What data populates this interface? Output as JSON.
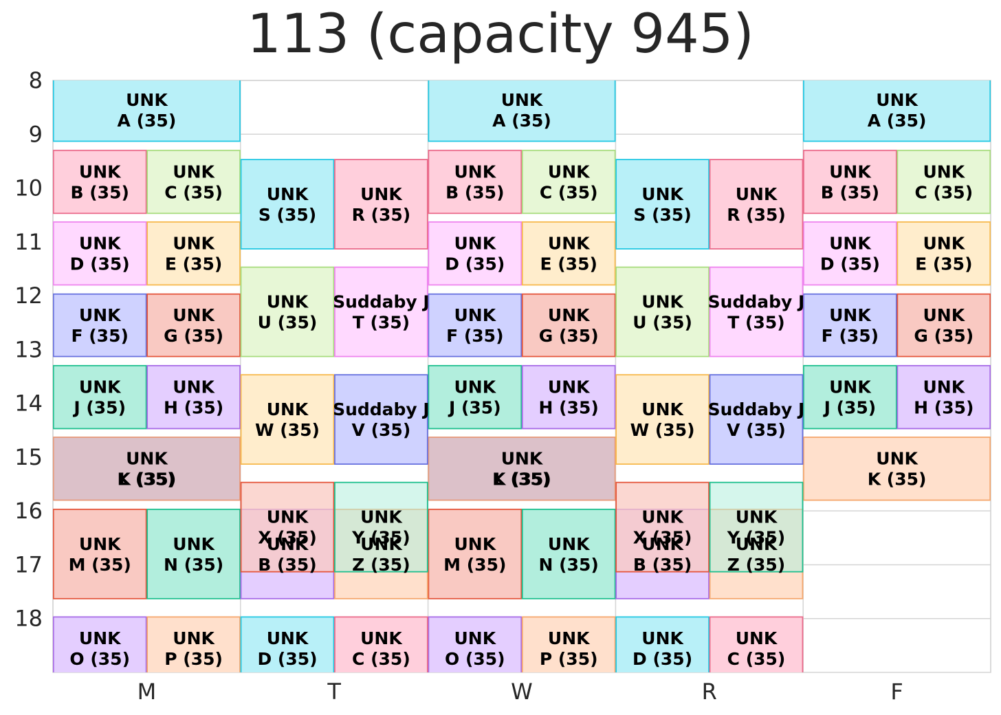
{
  "chart_data": {
    "type": "timeline",
    "title": "113 (capacity 945)",
    "x_categories": [
      "M",
      "T",
      "W",
      "R",
      "F"
    ],
    "y_ticks": [
      8,
      9,
      10,
      11,
      12,
      13,
      14,
      15,
      16,
      17,
      18
    ],
    "ylim": [
      8,
      19
    ],
    "grid": true,
    "colors": {
      "cyan": "#b8f0f8",
      "cyan_edge": "#23c8e3",
      "pink": "#ffcfdc",
      "pink_edge": "#ea6a8a",
      "lime": "#e7f7d6",
      "lime_edge": "#a8dc7e",
      "magenta": "#ffd9ff",
      "magenta_edge": "#ee84ee",
      "orange": "#ffedcc",
      "orange_edge": "#f7b94c",
      "blue": "#cfd2ff",
      "blue_edge": "#6770de",
      "red": "#f9c9c2",
      "red_edge": "#e4553b",
      "teal": "#b2eedd",
      "teal_edge": "#1dbf8e",
      "purple": "#e4ceff",
      "purple_edge": "#a66ae6",
      "peach": "#ffe0cc",
      "peach_edge": "#f5a66c",
      "mauve": "#dcc1c9",
      "mauve_edge": "#e79a7a"
    },
    "events": [
      {
        "day": "M",
        "slot": "full",
        "start": 7.97,
        "end": 9.13,
        "color": "cyan",
        "line1": "UNK",
        "line2": "A (35)"
      },
      {
        "day": "W",
        "slot": "full",
        "start": 7.97,
        "end": 9.13,
        "color": "cyan",
        "line1": "UNK",
        "line2": "A (35)"
      },
      {
        "day": "F",
        "slot": "full",
        "start": 7.97,
        "end": 9.13,
        "color": "cyan",
        "line1": "UNK",
        "line2": "A (35)"
      },
      {
        "day": "M",
        "slot": "left",
        "start": 9.3,
        "end": 10.47,
        "color": "pink",
        "line1": "UNK",
        "line2": "B (35)"
      },
      {
        "day": "M",
        "slot": "right",
        "start": 9.3,
        "end": 10.47,
        "color": "lime",
        "line1": "UNK",
        "line2": "C (35)"
      },
      {
        "day": "W",
        "slot": "left",
        "start": 9.3,
        "end": 10.47,
        "color": "pink",
        "line1": "UNK",
        "line2": "B (35)"
      },
      {
        "day": "W",
        "slot": "right",
        "start": 9.3,
        "end": 10.47,
        "color": "lime",
        "line1": "UNK",
        "line2": "C (35)"
      },
      {
        "day": "F",
        "slot": "left",
        "start": 9.3,
        "end": 10.47,
        "color": "pink",
        "line1": "UNK",
        "line2": "B (35)"
      },
      {
        "day": "F",
        "slot": "right",
        "start": 9.3,
        "end": 10.47,
        "color": "lime",
        "line1": "UNK",
        "line2": "C (35)"
      },
      {
        "day": "M",
        "slot": "left",
        "start": 10.63,
        "end": 11.8,
        "color": "magenta",
        "line1": "UNK",
        "line2": "D (35)"
      },
      {
        "day": "M",
        "slot": "right",
        "start": 10.63,
        "end": 11.8,
        "color": "orange",
        "line1": "UNK",
        "line2": "E (35)"
      },
      {
        "day": "W",
        "slot": "left",
        "start": 10.63,
        "end": 11.8,
        "color": "magenta",
        "line1": "UNK",
        "line2": "D (35)"
      },
      {
        "day": "W",
        "slot": "right",
        "start": 10.63,
        "end": 11.8,
        "color": "orange",
        "line1": "UNK",
        "line2": "E (35)"
      },
      {
        "day": "F",
        "slot": "left",
        "start": 10.63,
        "end": 11.8,
        "color": "magenta",
        "line1": "UNK",
        "line2": "D (35)"
      },
      {
        "day": "F",
        "slot": "right",
        "start": 10.63,
        "end": 11.8,
        "color": "orange",
        "line1": "UNK",
        "line2": "E (35)"
      },
      {
        "day": "M",
        "slot": "left",
        "start": 11.97,
        "end": 13.13,
        "color": "blue",
        "line1": "UNK",
        "line2": "F (35)"
      },
      {
        "day": "M",
        "slot": "right",
        "start": 11.97,
        "end": 13.13,
        "color": "red",
        "line1": "UNK",
        "line2": "G (35)"
      },
      {
        "day": "W",
        "slot": "left",
        "start": 11.97,
        "end": 13.13,
        "color": "blue",
        "line1": "UNK",
        "line2": "F (35)"
      },
      {
        "day": "W",
        "slot": "right",
        "start": 11.97,
        "end": 13.13,
        "color": "red",
        "line1": "UNK",
        "line2": "G (35)"
      },
      {
        "day": "F",
        "slot": "left",
        "start": 11.97,
        "end": 13.13,
        "color": "blue",
        "line1": "UNK",
        "line2": "F (35)"
      },
      {
        "day": "F",
        "slot": "right",
        "start": 11.97,
        "end": 13.13,
        "color": "red",
        "line1": "UNK",
        "line2": "G (35)"
      },
      {
        "day": "M",
        "slot": "left",
        "start": 13.3,
        "end": 14.47,
        "color": "teal",
        "line1": "UNK",
        "line2": "J (35)"
      },
      {
        "day": "M",
        "slot": "right",
        "start": 13.3,
        "end": 14.47,
        "color": "purple",
        "line1": "UNK",
        "line2": "H (35)"
      },
      {
        "day": "W",
        "slot": "left",
        "start": 13.3,
        "end": 14.47,
        "color": "teal",
        "line1": "UNK",
        "line2": "J (35)"
      },
      {
        "day": "W",
        "slot": "right",
        "start": 13.3,
        "end": 14.47,
        "color": "purple",
        "line1": "UNK",
        "line2": "H (35)"
      },
      {
        "day": "F",
        "slot": "left",
        "start": 13.3,
        "end": 14.47,
        "color": "teal",
        "line1": "UNK",
        "line2": "J (35)"
      },
      {
        "day": "F",
        "slot": "right",
        "start": 13.3,
        "end": 14.47,
        "color": "purple",
        "line1": "UNK",
        "line2": "H (35)"
      },
      {
        "day": "M",
        "slot": "full",
        "start": 14.63,
        "end": 15.8,
        "color": "mauve",
        "line1": "UNK",
        "line2": "L (35)"
      },
      {
        "day": "M",
        "slot": "full",
        "start": 14.63,
        "end": 15.8,
        "color": "none",
        "line1": "",
        "line2": "K (35)"
      },
      {
        "day": "W",
        "slot": "full",
        "start": 14.63,
        "end": 15.8,
        "color": "mauve",
        "line1": "UNK",
        "line2": "L (35)"
      },
      {
        "day": "W",
        "slot": "full",
        "start": 14.63,
        "end": 15.8,
        "color": "none",
        "line1": "",
        "line2": "K (35)"
      },
      {
        "day": "F",
        "slot": "full",
        "start": 14.63,
        "end": 15.8,
        "color": "peach",
        "line1": "UNK",
        "line2": "K (35)"
      },
      {
        "day": "M",
        "slot": "left",
        "start": 15.97,
        "end": 17.63,
        "color": "red",
        "line1": "UNK",
        "line2": "M (35)"
      },
      {
        "day": "M",
        "slot": "right",
        "start": 15.97,
        "end": 17.63,
        "color": "teal",
        "line1": "UNK",
        "line2": "N (35)"
      },
      {
        "day": "W",
        "slot": "left",
        "start": 15.97,
        "end": 17.63,
        "color": "red",
        "line1": "UNK",
        "line2": "M (35)"
      },
      {
        "day": "W",
        "slot": "right",
        "start": 15.97,
        "end": 17.63,
        "color": "teal",
        "line1": "UNK",
        "line2": "N (35)"
      },
      {
        "day": "M",
        "slot": "left",
        "start": 17.97,
        "end": 19.13,
        "color": "purple",
        "line1": "UNK",
        "line2": "O (35)"
      },
      {
        "day": "M",
        "slot": "right",
        "start": 17.97,
        "end": 19.13,
        "color": "peach",
        "line1": "UNK",
        "line2": "P (35)"
      },
      {
        "day": "W",
        "slot": "left",
        "start": 17.97,
        "end": 19.13,
        "color": "purple",
        "line1": "UNK",
        "line2": "O (35)"
      },
      {
        "day": "W",
        "slot": "right",
        "start": 17.97,
        "end": 19.13,
        "color": "peach",
        "line1": "UNK",
        "line2": "P (35)"
      },
      {
        "day": "T",
        "slot": "left",
        "start": 9.47,
        "end": 11.13,
        "color": "cyan",
        "line1": "UNK",
        "line2": "S (35)"
      },
      {
        "day": "T",
        "slot": "right",
        "start": 9.47,
        "end": 11.13,
        "color": "pink",
        "line1": "UNK",
        "line2": "R (35)"
      },
      {
        "day": "R",
        "slot": "left",
        "start": 9.47,
        "end": 11.13,
        "color": "cyan",
        "line1": "UNK",
        "line2": "S (35)"
      },
      {
        "day": "R",
        "slot": "right",
        "start": 9.47,
        "end": 11.13,
        "color": "pink",
        "line1": "UNK",
        "line2": "R (35)"
      },
      {
        "day": "T",
        "slot": "left",
        "start": 11.47,
        "end": 13.13,
        "color": "lime",
        "line1": "UNK",
        "line2": "U (35)"
      },
      {
        "day": "T",
        "slot": "right",
        "start": 11.47,
        "end": 13.13,
        "color": "magenta",
        "line1": "Suddaby J",
        "line2": "T (35)"
      },
      {
        "day": "R",
        "slot": "left",
        "start": 11.47,
        "end": 13.13,
        "color": "lime",
        "line1": "UNK",
        "line2": "U (35)"
      },
      {
        "day": "R",
        "slot": "right",
        "start": 11.47,
        "end": 13.13,
        "color": "magenta",
        "line1": "Suddaby J",
        "line2": "T (35)"
      },
      {
        "day": "T",
        "slot": "left",
        "start": 13.47,
        "end": 15.13,
        "color": "orange",
        "line1": "UNK",
        "line2": "W (35)"
      },
      {
        "day": "T",
        "slot": "right",
        "start": 13.47,
        "end": 15.13,
        "color": "blue",
        "line1": "Suddaby J",
        "line2": "V (35)"
      },
      {
        "day": "R",
        "slot": "left",
        "start": 13.47,
        "end": 15.13,
        "color": "orange",
        "line1": "UNK",
        "line2": "W (35)"
      },
      {
        "day": "R",
        "slot": "right",
        "start": 13.47,
        "end": 15.13,
        "color": "blue",
        "line1": "Suddaby J",
        "line2": "V (35)"
      },
      {
        "day": "T",
        "slot": "left",
        "start": 15.97,
        "end": 17.63,
        "color": "purple",
        "line1": "UNK",
        "line2": "B (35)"
      },
      {
        "day": "T",
        "slot": "right",
        "start": 15.97,
        "end": 17.63,
        "color": "peach",
        "line1": "UNK",
        "line2": "Z (35)"
      },
      {
        "day": "R",
        "slot": "left",
        "start": 15.97,
        "end": 17.63,
        "color": "purple",
        "line1": "UNK",
        "line2": "B (35)"
      },
      {
        "day": "R",
        "slot": "right",
        "start": 15.97,
        "end": 17.63,
        "color": "peach",
        "line1": "UNK",
        "line2": "Z (35)"
      },
      {
        "day": "T",
        "slot": "left",
        "start": 15.47,
        "end": 17.13,
        "color": "red",
        "alpha": 0.75,
        "line1": "UNK",
        "line2": "X (35)"
      },
      {
        "day": "T",
        "slot": "right",
        "start": 15.47,
        "end": 17.13,
        "color": "teal",
        "alpha": 0.55,
        "line1": "UNK",
        "line2": "Y (35)"
      },
      {
        "day": "R",
        "slot": "left",
        "start": 15.47,
        "end": 17.13,
        "color": "red",
        "alpha": 0.75,
        "line1": "UNK",
        "line2": "X (35)"
      },
      {
        "day": "R",
        "slot": "right",
        "start": 15.47,
        "end": 17.13,
        "color": "teal",
        "alpha": 0.55,
        "line1": "UNK",
        "line2": "Y (35)"
      },
      {
        "day": "T",
        "slot": "left",
        "start": 17.97,
        "end": 19.13,
        "color": "cyan",
        "line1": "UNK",
        "line2": "D (35)"
      },
      {
        "day": "T",
        "slot": "right",
        "start": 17.97,
        "end": 19.13,
        "color": "pink",
        "line1": "UNK",
        "line2": "C (35)"
      },
      {
        "day": "R",
        "slot": "left",
        "start": 17.97,
        "end": 19.13,
        "color": "cyan",
        "line1": "UNK",
        "line2": "D (35)"
      },
      {
        "day": "R",
        "slot": "right",
        "start": 17.97,
        "end": 19.13,
        "color": "pink",
        "line1": "UNK",
        "line2": "C (35)"
      }
    ]
  }
}
